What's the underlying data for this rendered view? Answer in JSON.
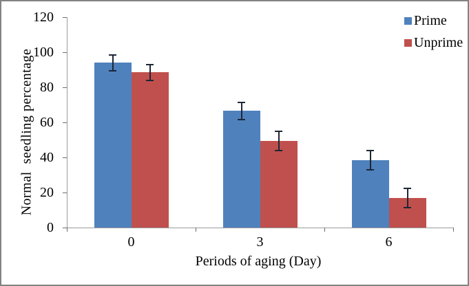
{
  "chart_data": {
    "type": "bar",
    "title": "",
    "categories": [
      "0",
      "3",
      "6"
    ],
    "series": [
      {
        "name": "Prime",
        "color": "#4F81BD",
        "values": [
          94,
          66.5,
          38.5
        ],
        "errors": [
          4.5,
          5,
          5.5
        ]
      },
      {
        "name": "Unprime",
        "color": "#C0504D",
        "values": [
          88.5,
          49.5,
          17
        ],
        "errors": [
          4.5,
          5.5,
          5.5
        ]
      }
    ],
    "xlabel": "Periods of aging (Day)",
    "ylabel": "Normal  seedling percentage",
    "ylim": [
      0,
      120
    ],
    "yticks": [
      0,
      20,
      40,
      60,
      80,
      100,
      120
    ],
    "grid": false,
    "legend_position": "top-right",
    "error_bars": true,
    "error_bar_color": "#1c2636",
    "axis_color": "#9a9a9a",
    "tick_color": "#6b6b6b",
    "background": "#ffffff",
    "frame_color": "#828282"
  }
}
